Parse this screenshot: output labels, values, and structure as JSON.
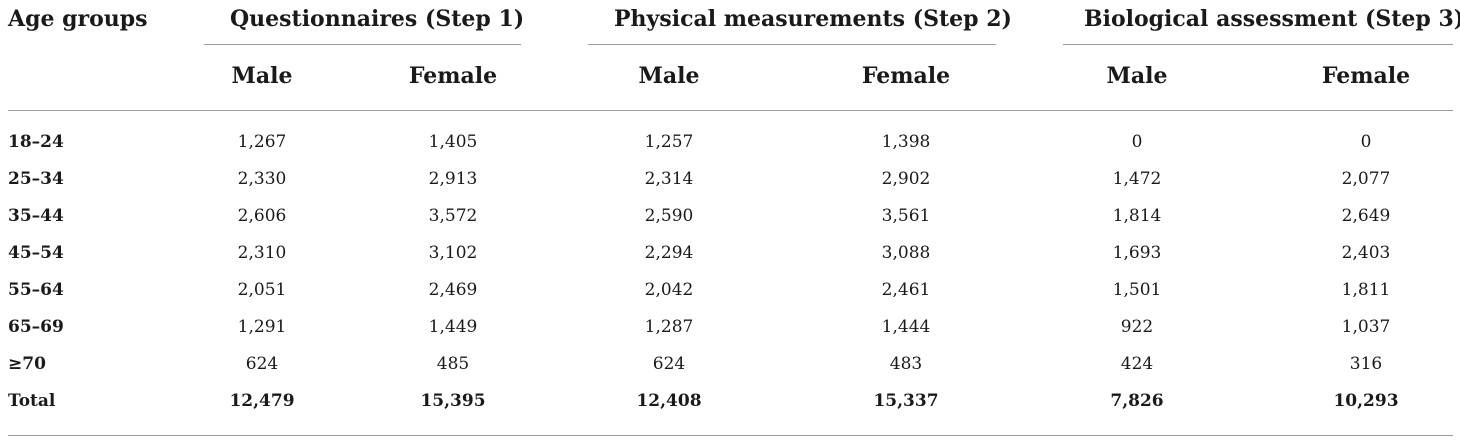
{
  "table": {
    "header": {
      "first_col": "Age groups",
      "groups": [
        "Questionnaires (Step 1)",
        "Physical measurements (Step 2)",
        "Biological assessment (Step 3)"
      ],
      "sub": [
        "Male",
        "Female",
        "Male",
        "Female",
        "Male",
        "Female"
      ]
    },
    "rows": [
      {
        "label": "18–24",
        "values": [
          "1,267",
          "1,405",
          "1,257",
          "1,398",
          "0",
          "0"
        ]
      },
      {
        "label": "25–34",
        "values": [
          "2,330",
          "2,913",
          "2,314",
          "2,902",
          "1,472",
          "2,077"
        ]
      },
      {
        "label": "35–44",
        "values": [
          "2,606",
          "3,572",
          "2,590",
          "3,561",
          "1,814",
          "2,649"
        ]
      },
      {
        "label": "45–54",
        "values": [
          "2,310",
          "3,102",
          "2,294",
          "3,088",
          "1,693",
          "2,403"
        ]
      },
      {
        "label": "55–64",
        "values": [
          "2,051",
          "2,469",
          "2,042",
          "2,461",
          "1,501",
          "1,811"
        ]
      },
      {
        "label": "65–69",
        "values": [
          "1,291",
          "1,449",
          "1,287",
          "1,444",
          "922",
          "1,037"
        ]
      },
      {
        "label": "≥70",
        "values": [
          "624",
          "485",
          "624",
          "483",
          "424",
          "316"
        ]
      },
      {
        "label": "Total",
        "values": [
          "12,479",
          "15,395",
          "12,408",
          "15,337",
          "7,826",
          "10,293"
        ]
      }
    ]
  }
}
